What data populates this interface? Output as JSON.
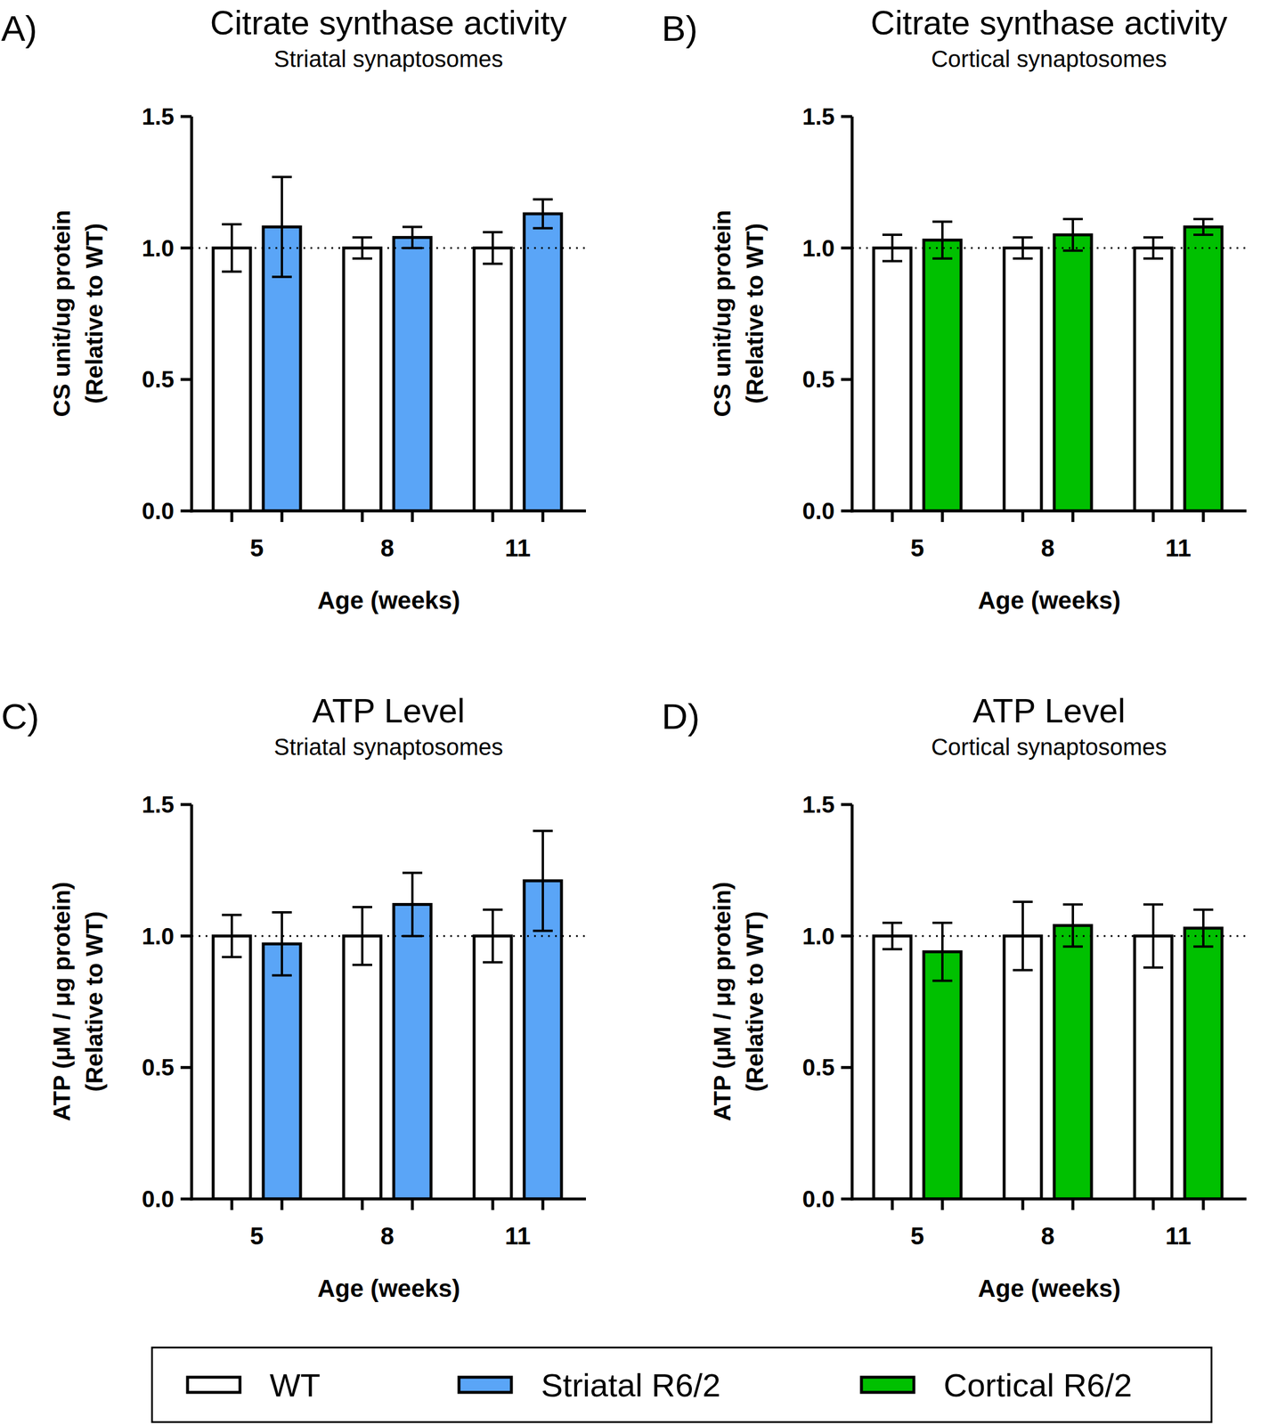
{
  "chart_data": [
    {
      "type": "bar",
      "panel": "A)",
      "title": "Citrate synthase activity",
      "subtitle": "Striatal synaptosomes",
      "y_label": [
        "CS unit/ug protein",
        "(Relative to WT)"
      ],
      "x_label": "Age (weeks)",
      "categories": [
        "5",
        "8",
        "11"
      ],
      "ylim": [
        0,
        1.5
      ],
      "yticks": [
        {
          "value": 0,
          "label": "0.0"
        },
        {
          "value": 0.5,
          "label": "0.5"
        },
        {
          "value": 1,
          "label": "1.0"
        },
        {
          "value": 1.5,
          "label": "1.5"
        }
      ],
      "reference_line": 1,
      "series": [
        {
          "name": "WT",
          "color": "#ffffff",
          "values": [
            1,
            1,
            1
          ],
          "errors": [
            0.09,
            0.04,
            0.06
          ]
        },
        {
          "name": "Striatal R6/2",
          "color": "#5aa5f7",
          "values": [
            1.08,
            1.04,
            1.13
          ],
          "errors": [
            0.19,
            0.04,
            0.055
          ]
        }
      ]
    },
    {
      "type": "bar",
      "panel": "B)",
      "title": "Citrate synthase activity",
      "subtitle": "Cortical synaptosomes",
      "y_label": [
        "CS unit/ug protein",
        "(Relative to WT)"
      ],
      "x_label": "Age (weeks)",
      "categories": [
        "5",
        "8",
        "11"
      ],
      "ylim": [
        0,
        1.5
      ],
      "yticks": [
        {
          "value": 0,
          "label": "0.0"
        },
        {
          "value": 0.5,
          "label": "0.5"
        },
        {
          "value": 1,
          "label": "1.0"
        },
        {
          "value": 1.5,
          "label": "1.5"
        }
      ],
      "reference_line": 1,
      "series": [
        {
          "name": "WT",
          "color": "#ffffff",
          "values": [
            1,
            1,
            1
          ],
          "errors": [
            0.05,
            0.04,
            0.04
          ]
        },
        {
          "name": "Cortical R6/2",
          "color": "#00c000",
          "values": [
            1.03,
            1.05,
            1.08
          ],
          "errors": [
            0.07,
            0.06,
            0.03
          ]
        }
      ]
    },
    {
      "type": "bar",
      "panel": "C)",
      "title": "ATP Level",
      "subtitle": "Striatal synaptosomes",
      "y_label": [
        "ATP (μM / μg protein)",
        "(Relative to WT)"
      ],
      "x_label": "Age (weeks)",
      "categories": [
        "5",
        "8",
        "11"
      ],
      "ylim": [
        0,
        1.5
      ],
      "yticks": [
        {
          "value": 0,
          "label": "0.0"
        },
        {
          "value": 0.5,
          "label": "0.5"
        },
        {
          "value": 1,
          "label": "1.0"
        },
        {
          "value": 1.5,
          "label": "1.5"
        }
      ],
      "reference_line": 1,
      "series": [
        {
          "name": "WT",
          "color": "#ffffff",
          "values": [
            1,
            1,
            1
          ],
          "errors": [
            0.08,
            0.11,
            0.1
          ]
        },
        {
          "name": "Striatal R6/2",
          "color": "#5aa5f7",
          "values": [
            0.97,
            1.12,
            1.21
          ],
          "errors": [
            0.12,
            0.12,
            0.19
          ]
        }
      ]
    },
    {
      "type": "bar",
      "panel": "D)",
      "title": "ATP Level",
      "subtitle": "Cortical synaptosomes",
      "y_label": [
        "ATP (μM / μg protein)",
        "(Relative to WT)"
      ],
      "x_label": "Age (weeks)",
      "categories": [
        "5",
        "8",
        "11"
      ],
      "ylim": [
        0,
        1.5
      ],
      "yticks": [
        {
          "value": 0,
          "label": "0.0"
        },
        {
          "value": 0.5,
          "label": "0.5"
        },
        {
          "value": 1,
          "label": "1.0"
        },
        {
          "value": 1.5,
          "label": "1.5"
        }
      ],
      "reference_line": 1,
      "series": [
        {
          "name": "WT",
          "color": "#ffffff",
          "values": [
            1,
            1,
            1
          ],
          "errors": [
            0.05,
            0.13,
            0.12
          ]
        },
        {
          "name": "Cortical R6/2",
          "color": "#00c000",
          "values": [
            0.94,
            1.04,
            1.03
          ],
          "errors": [
            0.11,
            0.08,
            0.07
          ]
        }
      ]
    }
  ]
}
